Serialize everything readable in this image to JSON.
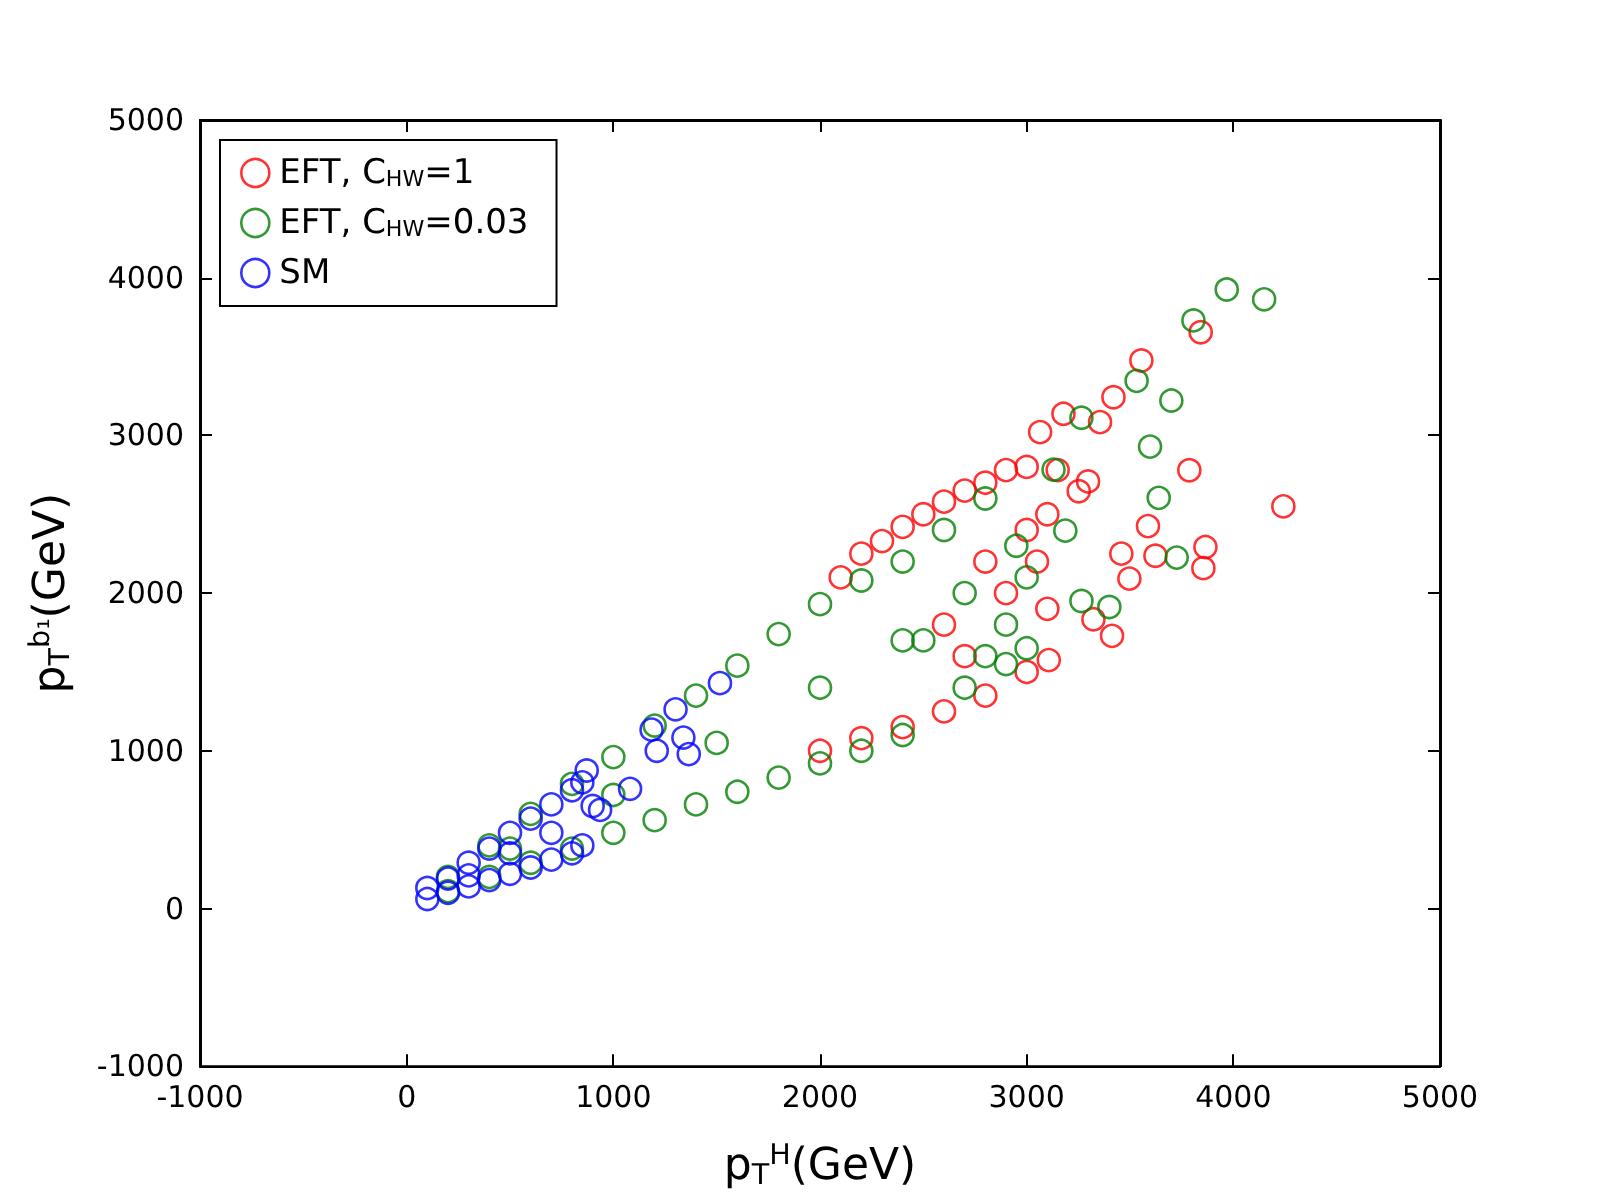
{
  "chart_data": {
    "type": "scatter",
    "xlabel": "p$_{T}$$^{H}$(GeV)",
    "ylabel": "p$_{T}$$^{b₁}$(GeV)",
    "xlim": [
      -1000,
      5000
    ],
    "ylim": [
      -1000,
      5000
    ],
    "xticks": [
      -1000,
      0,
      1000,
      2000,
      3000,
      4000,
      5000
    ],
    "yticks": [
      -1000,
      0,
      1000,
      2000,
      3000,
      4000,
      5000
    ],
    "grid": false,
    "legend": "top left",
    "marker": "circle",
    "series": [
      {
        "name": "EFT, C$_{HW}$=1",
        "color": "#ff0000",
        "x": [
          2100,
          2200,
          2300,
          2400,
          2500,
          2600,
          2700,
          2800,
          2900,
          3000,
          2000,
          2200,
          2400,
          2600,
          2800,
          3000,
          2600,
          2800,
          2900,
          3000,
          2700,
          3100,
          3100,
          3150,
          3050,
          3842,
          3555,
          3420,
          3178,
          4242,
          3787,
          3587,
          3458,
          3865,
          3855,
          3623,
          3497,
          3413,
          3323,
          3107,
          3252,
          3297,
          3065,
          3355
        ],
        "values": [
          2100,
          2250,
          2330,
          2420,
          2500,
          2580,
          2650,
          2700,
          2780,
          2800,
          1000,
          1080,
          1150,
          1250,
          1350,
          1500,
          1800,
          2200,
          2000,
          2400,
          1600,
          1900,
          2500,
          2780,
          2200,
          3654,
          3475,
          3242,
          3137,
          2550,
          2779,
          2425,
          2250,
          2292,
          2158,
          2237,
          2092,
          1729,
          1834,
          1575,
          2646,
          2708,
          3021,
          3084
        ]
      },
      {
        "name": "EFT, C$_{HW}$=0.03",
        "color": "#008000",
        "x": [
          200,
          200,
          400,
          400,
          600,
          600,
          800,
          800,
          1000,
          1000,
          1200,
          1200,
          1400,
          1400,
          1600,
          1600,
          1800,
          1800,
          2000,
          2000,
          2200,
          2200,
          2400,
          2400,
          500,
          1000,
          1500,
          2000,
          2400,
          2500,
          2700,
          2800,
          2900,
          2950,
          3000,
          2600,
          2700,
          2900,
          3000,
          2800,
          3968,
          4149,
          3807,
          3532,
          3700,
          3597,
          3639,
          3726,
          3265,
          3400,
          3265,
          3130,
          3187
        ],
        "values": [
          110,
          200,
          200,
          400,
          290,
          600,
          380,
          790,
          480,
          960,
          560,
          1160,
          660,
          1350,
          740,
          1540,
          830,
          1740,
          920,
          1930,
          1000,
          2080,
          1100,
          2200,
          380,
          720,
          1050,
          1400,
          1700,
          1700,
          2000,
          1600,
          1800,
          2300,
          2100,
          2400,
          1400,
          1550,
          1650,
          2600,
          3925,
          3863,
          3729,
          3346,
          3221,
          2929,
          2604,
          2225,
          1950,
          1912,
          3112,
          2783,
          2396
        ]
      },
      {
        "name": "SM",
        "color": "#0000ff",
        "x": [
          100,
          100,
          200,
          200,
          300,
          300,
          400,
          400,
          500,
          500,
          600,
          600,
          700,
          700,
          800,
          800,
          850,
          850,
          300,
          500,
          700,
          900,
          1516,
          1301,
          1185,
          1339,
          1365,
          1210,
          1081,
          871,
          936
        ],
        "values": [
          60,
          130,
          100,
          190,
          140,
          290,
          180,
          380,
          220,
          480,
          260,
          570,
          310,
          660,
          350,
          750,
          400,
          800,
          210,
          350,
          480,
          650,
          1429,
          1263,
          1134,
          1084,
          979,
          1000,
          759,
          875,
          625
        ]
      }
    ]
  }
}
